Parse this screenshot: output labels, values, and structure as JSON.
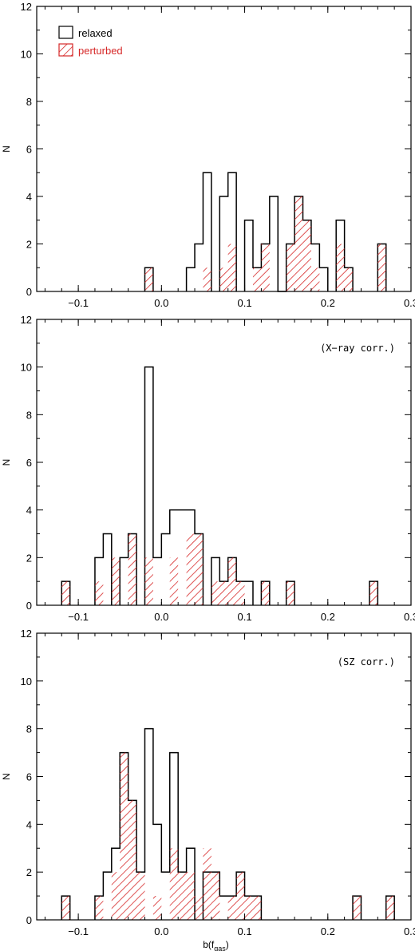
{
  "chart_data": [
    {
      "type": "histogram",
      "annotation": "",
      "ylabel": "N",
      "xlabel": "",
      "xlim": [
        -0.15,
        0.3
      ],
      "ylim": [
        0,
        12
      ],
      "x_ticks": [
        -0.1,
        0.0,
        0.1,
        0.2,
        0.3
      ],
      "x_tick_labels": [
        "−0.1",
        "0.0",
        "0.1",
        "0.2",
        "0.3"
      ],
      "y_ticks": [
        0,
        2,
        4,
        6,
        8,
        10,
        12
      ],
      "bin_width": 0.01,
      "legend": {
        "placement": "top-left",
        "relaxed_label": "relaxed",
        "perturbed_label": "perturbed"
      },
      "series": [
        {
          "name": "relaxed",
          "style": "outline",
          "color": "#000000",
          "bins": [
            [
              -0.02,
              1
            ],
            [
              0.03,
              1
            ],
            [
              0.04,
              2
            ],
            [
              0.05,
              5
            ],
            [
              0.07,
              4
            ],
            [
              0.08,
              5
            ],
            [
              0.1,
              3
            ],
            [
              0.11,
              1
            ],
            [
              0.12,
              2
            ],
            [
              0.13,
              4
            ],
            [
              0.14,
              0
            ],
            [
              0.15,
              2
            ],
            [
              0.16,
              4
            ],
            [
              0.17,
              3
            ],
            [
              0.18,
              2
            ],
            [
              0.19,
              1
            ],
            [
              0.21,
              3
            ],
            [
              0.22,
              1
            ],
            [
              0.26,
              2
            ]
          ]
        },
        {
          "name": "perturbed",
          "style": "hatched",
          "color": "#d62828",
          "bins": [
            [
              -0.02,
              1
            ],
            [
              0.05,
              1
            ],
            [
              0.07,
              1
            ],
            [
              0.08,
              2
            ],
            [
              0.11,
              1
            ],
            [
              0.12,
              2
            ],
            [
              0.15,
              2
            ],
            [
              0.16,
              4
            ],
            [
              0.17,
              3
            ],
            [
              0.18,
              1
            ],
            [
              0.21,
              2
            ],
            [
              0.22,
              1
            ],
            [
              0.26,
              2
            ]
          ]
        }
      ]
    },
    {
      "type": "histogram",
      "annotation": "(X−ray corr.)",
      "ylabel": "N",
      "xlabel": "",
      "xlim": [
        -0.15,
        0.3
      ],
      "ylim": [
        0,
        12
      ],
      "x_ticks": [
        -0.1,
        0.0,
        0.1,
        0.2,
        0.3
      ],
      "x_tick_labels": [
        "−0.1",
        "0.0",
        "0.1",
        "0.2",
        "0.3"
      ],
      "y_ticks": [
        0,
        2,
        4,
        6,
        8,
        10,
        12
      ],
      "bin_width": 0.01,
      "series": [
        {
          "name": "relaxed",
          "style": "outline",
          "color": "#000000",
          "bins": [
            [
              -0.12,
              1
            ],
            [
              -0.08,
              2
            ],
            [
              -0.07,
              3
            ],
            [
              -0.05,
              2
            ],
            [
              -0.04,
              3
            ],
            [
              -0.02,
              10
            ],
            [
              -0.01,
              2
            ],
            [
              0.0,
              3
            ],
            [
              0.01,
              4
            ],
            [
              0.02,
              4
            ],
            [
              0.03,
              4
            ],
            [
              0.04,
              3
            ],
            [
              0.06,
              2
            ],
            [
              0.07,
              1
            ],
            [
              0.08,
              2
            ],
            [
              0.09,
              1
            ],
            [
              0.1,
              1
            ],
            [
              0.12,
              1
            ],
            [
              0.15,
              1
            ],
            [
              0.25,
              1
            ]
          ]
        },
        {
          "name": "perturbed",
          "style": "hatched",
          "color": "#d62828",
          "bins": [
            [
              -0.12,
              1
            ],
            [
              -0.08,
              1
            ],
            [
              -0.06,
              2
            ],
            [
              -0.04,
              3
            ],
            [
              -0.02,
              2
            ],
            [
              0.01,
              2
            ],
            [
              0.03,
              3
            ],
            [
              0.04,
              3
            ],
            [
              0.06,
              1
            ],
            [
              0.07,
              1
            ],
            [
              0.08,
              2
            ],
            [
              0.09,
              1
            ],
            [
              0.12,
              1
            ],
            [
              0.15,
              1
            ],
            [
              0.25,
              1
            ]
          ]
        }
      ]
    },
    {
      "type": "histogram",
      "annotation": "(SZ corr.)",
      "ylabel": "N",
      "xlabel": "b(f",
      "xlabel_sub": "gas",
      "xlabel_end": ")",
      "xlim": [
        -0.15,
        0.3
      ],
      "ylim": [
        0,
        12
      ],
      "x_ticks": [
        -0.1,
        0.0,
        0.1,
        0.2,
        0.3
      ],
      "x_tick_labels": [
        "−0.1",
        "0.0",
        "0.1",
        "0.2",
        "0.3"
      ],
      "y_ticks": [
        0,
        2,
        4,
        6,
        8,
        10,
        12
      ],
      "bin_width": 0.01,
      "series": [
        {
          "name": "relaxed",
          "style": "outline",
          "color": "#000000",
          "bins": [
            [
              -0.12,
              1
            ],
            [
              -0.08,
              1
            ],
            [
              -0.07,
              2
            ],
            [
              -0.06,
              3
            ],
            [
              -0.05,
              7
            ],
            [
              -0.04,
              5
            ],
            [
              -0.03,
              2
            ],
            [
              -0.02,
              8
            ],
            [
              -0.01,
              4
            ],
            [
              0.0,
              2
            ],
            [
              0.01,
              7
            ],
            [
              0.02,
              2
            ],
            [
              0.03,
              3
            ],
            [
              0.05,
              2
            ],
            [
              0.06,
              2
            ],
            [
              0.07,
              1
            ],
            [
              0.08,
              1
            ],
            [
              0.09,
              2
            ],
            [
              0.1,
              1
            ],
            [
              0.11,
              1
            ],
            [
              0.23,
              1
            ],
            [
              0.27,
              1
            ]
          ]
        },
        {
          "name": "perturbed",
          "style": "hatched",
          "color": "#d62828",
          "bins": [
            [
              -0.12,
              1
            ],
            [
              -0.08,
              1
            ],
            [
              -0.06,
              2
            ],
            [
              -0.05,
              7
            ],
            [
              -0.04,
              5
            ],
            [
              -0.03,
              2
            ],
            [
              -0.01,
              1
            ],
            [
              0.01,
              3
            ],
            [
              0.02,
              2
            ],
            [
              0.03,
              2
            ],
            [
              0.04,
              1
            ],
            [
              0.05,
              3
            ],
            [
              0.06,
              2
            ],
            [
              0.08,
              1
            ],
            [
              0.09,
              2
            ],
            [
              0.1,
              1
            ],
            [
              0.11,
              1
            ],
            [
              0.23,
              1
            ],
            [
              0.27,
              1
            ]
          ]
        }
      ]
    }
  ]
}
